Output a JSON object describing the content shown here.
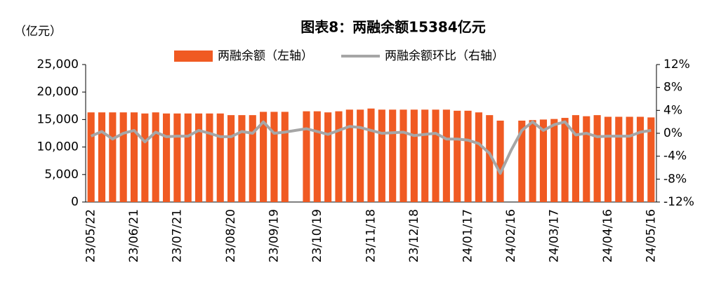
{
  "chart_data": {
    "type": "bar-line",
    "title": "图表8：两融余额15384亿元",
    "y_label": "（亿元）",
    "categories": [
      "23/05/22",
      null,
      null,
      null,
      "23/06/21",
      null,
      null,
      null,
      "23/07/21",
      null,
      null,
      null,
      null,
      "23/08/20",
      null,
      null,
      null,
      "23/09/19",
      null,
      null,
      null,
      "23/10/19",
      null,
      null,
      null,
      null,
      "23/11/18",
      null,
      null,
      null,
      "23/12/18",
      null,
      null,
      null,
      null,
      "24/01/17",
      null,
      null,
      null,
      "24/02/16",
      null,
      null,
      null,
      "24/03/17",
      null,
      null,
      null,
      null,
      "24/04/16",
      null,
      null,
      null,
      "24/05/16"
    ],
    "series": [
      {
        "name": "两融余额（左轴）",
        "kind": "bar",
        "color": "#f05a22",
        "values": [
          16300,
          16300,
          16300,
          16300,
          16300,
          16100,
          16300,
          16100,
          16100,
          16100,
          16100,
          16100,
          16100,
          15800,
          15800,
          15800,
          16400,
          16400,
          16400,
          null,
          16500,
          16500,
          16300,
          16500,
          16800,
          16800,
          17000,
          16800,
          16800,
          16800,
          16800,
          16800,
          16800,
          16800,
          16600,
          16600,
          16300,
          15800,
          14800,
          null,
          14800,
          14900,
          15000,
          15100,
          15300,
          15800,
          15600,
          15800,
          15500,
          15500,
          15500,
          15500,
          15384
        ]
      },
      {
        "name": "两融余额环比（右轴）",
        "kind": "line",
        "axis": "y2",
        "color": "#a6a6a6",
        "values": [
          -0.5,
          0.3,
          -1,
          0,
          0.5,
          -1.5,
          0.2,
          -0.6,
          -0.5,
          -0.5,
          0.5,
          0,
          -0.6,
          -0.6,
          0.3,
          0,
          2,
          0,
          0.2,
          0.5,
          0.8,
          0.3,
          -0.2,
          0.5,
          1.2,
          1,
          0.5,
          0,
          0.1,
          0.2,
          -0.4,
          -0.2,
          0,
          -1,
          -1,
          -1.2,
          -1.8,
          -3.5,
          -7,
          -3,
          0.5,
          2,
          0.5,
          1.5,
          2,
          -0.3,
          0,
          -0.6,
          -0.5,
          -0.5,
          -0.5,
          0.2,
          0.5
        ]
      }
    ],
    "ylim": [
      0,
      25000
    ],
    "yticks": [
      0,
      {
        "value": 5000,
        "label": "5,000"
      },
      {
        "value": 10000,
        "label": "10,000"
      },
      {
        "value": 15000,
        "label": "15,000"
      },
      {
        "value": 20000,
        "label": "20,000"
      },
      {
        "value": 25000,
        "label": "25,000"
      }
    ],
    "y2lim": [
      -12,
      12
    ],
    "y2ticks": [
      {
        "value": -12,
        "label": "-12%"
      },
      {
        "value": -8,
        "label": "-8%"
      },
      {
        "value": -4,
        "label": "-4%"
      },
      {
        "value": 0,
        "label": "0%"
      },
      {
        "value": 4,
        "label": "4%"
      },
      {
        "value": 8,
        "label": "8%"
      },
      {
        "value": 12,
        "label": "12%"
      }
    ],
    "grid": false,
    "legend": "top"
  }
}
